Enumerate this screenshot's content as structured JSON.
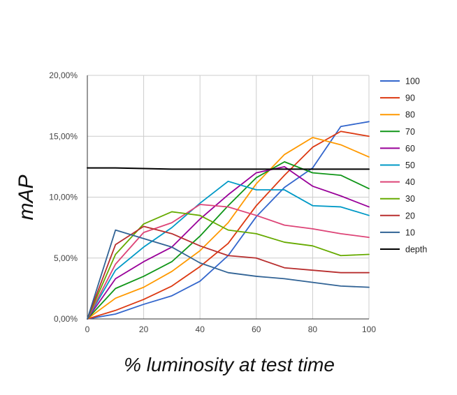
{
  "chart_data": {
    "type": "line",
    "xlabel": "% luminosity at test time",
    "ylabel": "mAP",
    "xlim": [
      0,
      100
    ],
    "ylim": [
      0,
      20
    ],
    "x_ticks": [
      "0",
      "20",
      "40",
      "60",
      "80",
      "100"
    ],
    "y_ticks": [
      "0,00%",
      "5,00%",
      "10,00%",
      "15,00%",
      "20,00%"
    ],
    "grid": true,
    "legend_position": "right",
    "x": [
      0,
      10,
      20,
      30,
      40,
      50,
      60,
      70,
      80,
      90,
      100
    ],
    "series": [
      {
        "name": "100",
        "color": "#3366cc",
        "values": [
          0,
          0.4,
          1.2,
          1.9,
          3.1,
          5.2,
          8.4,
          10.8,
          12.4,
          15.8,
          16.2
        ]
      },
      {
        "name": "90",
        "color": "#dc3912",
        "values": [
          0,
          0.7,
          1.6,
          2.7,
          4.3,
          6.2,
          9.3,
          11.8,
          14.1,
          15.4,
          15.0
        ]
      },
      {
        "name": "80",
        "color": "#ff9900",
        "values": [
          0,
          1.7,
          2.6,
          3.9,
          5.6,
          7.9,
          11.1,
          13.5,
          14.9,
          14.3,
          13.3
        ]
      },
      {
        "name": "70",
        "color": "#109618",
        "values": [
          0,
          2.5,
          3.5,
          4.7,
          6.8,
          9.3,
          11.6,
          12.9,
          12.0,
          11.8,
          10.7
        ]
      },
      {
        "name": "60",
        "color": "#990099",
        "values": [
          0,
          3.3,
          4.7,
          5.9,
          8.2,
          10.2,
          12.0,
          12.5,
          10.9,
          10.1,
          9.2
        ]
      },
      {
        "name": "50",
        "color": "#0099c6",
        "values": [
          0,
          4.0,
          5.9,
          7.5,
          9.5,
          11.3,
          10.6,
          10.6,
          9.3,
          9.2,
          8.5
        ]
      },
      {
        "name": "40",
        "color": "#dd4477",
        "values": [
          0,
          4.5,
          7.1,
          7.9,
          9.4,
          9.2,
          8.5,
          7.7,
          7.4,
          7.0,
          6.7
        ]
      },
      {
        "name": "30",
        "color": "#66aa00",
        "values": [
          0,
          5.3,
          7.8,
          8.8,
          8.5,
          7.3,
          7.0,
          6.3,
          6.0,
          5.2,
          5.3
        ]
      },
      {
        "name": "20",
        "color": "#b82e2e",
        "values": [
          0,
          6.1,
          7.6,
          7.0,
          6.0,
          5.2,
          5.0,
          4.2,
          4.0,
          3.8,
          3.8
        ]
      },
      {
        "name": "10",
        "color": "#316395",
        "values": [
          0,
          7.3,
          6.6,
          5.9,
          4.6,
          3.8,
          3.5,
          3.3,
          3.0,
          2.7,
          2.6
        ]
      },
      {
        "name": "depth",
        "color": "#000000",
        "values": [
          12.4,
          12.4,
          12.35,
          12.3,
          12.3,
          12.3,
          12.3,
          12.3,
          12.3,
          12.3,
          12.3
        ]
      }
    ]
  }
}
